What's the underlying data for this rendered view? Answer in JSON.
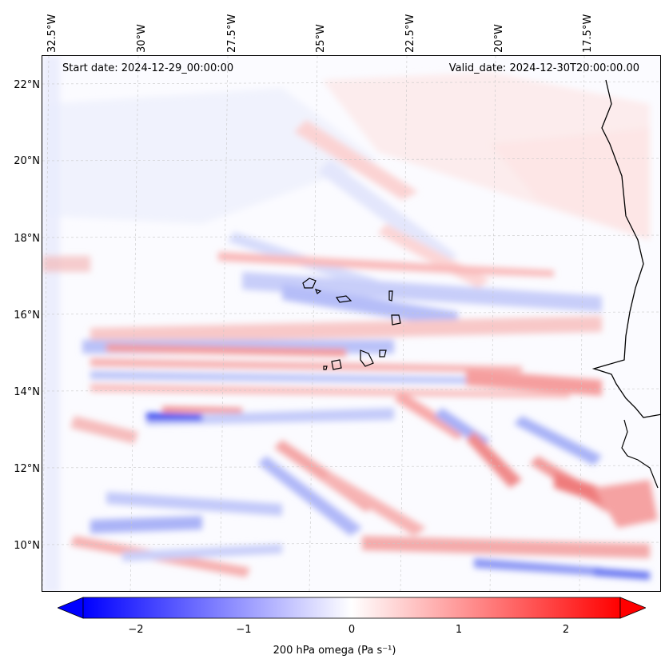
{
  "map": {
    "start_label": "Start date: 2024-12-29_00:00:00",
    "valid_label": "Valid_date: 2024-12-30T20:00:00.00",
    "longitude_labels": [
      "32.5°W",
      "30°W",
      "27.5°W",
      "25°W",
      "22.5°W",
      "20°W",
      "17.5°W"
    ],
    "latitude_labels": [
      "22°N",
      "20°N",
      "18°N",
      "16°N",
      "14°N",
      "12°N",
      "10°N"
    ],
    "field": "200 hPa omega",
    "colormap": "bwr"
  },
  "colorbar": {
    "ticks": [
      "−2",
      "−1",
      "0",
      "1",
      "2"
    ],
    "tick_values": [
      -2,
      -1,
      0,
      1,
      2
    ],
    "range": [
      -2.6,
      2.6
    ],
    "label": "200 hPa omega (Pa s⁻¹)",
    "min_color": "#0000ff",
    "mid_color": "#ffffff",
    "max_color": "#ff0000"
  }
}
